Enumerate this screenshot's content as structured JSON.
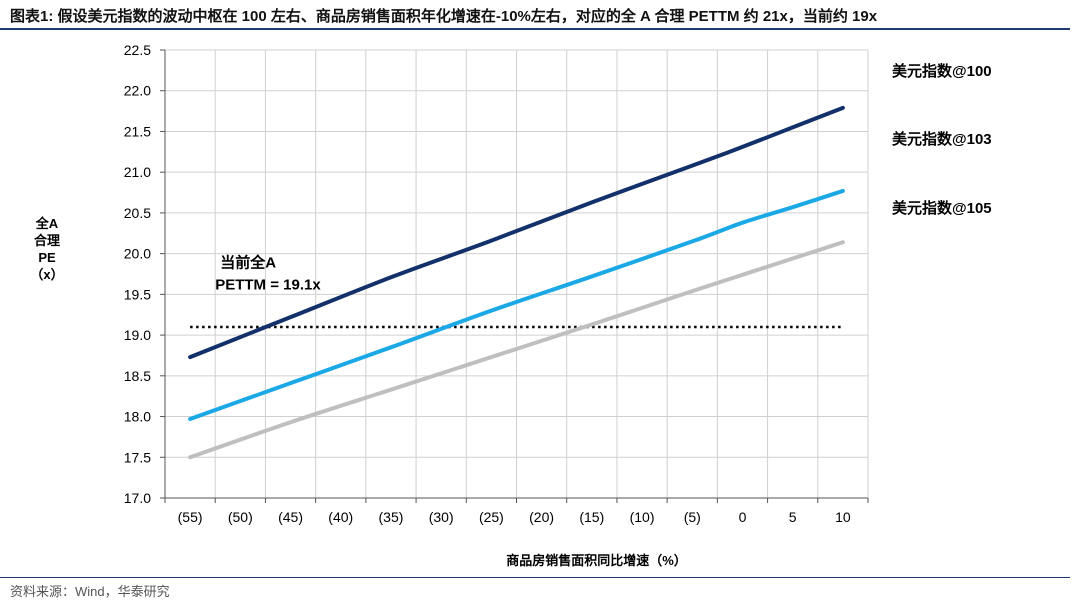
{
  "header": {
    "title": "图表1:  假设美元指数的波动中枢在 100 左右、商品房销售面积年化增速在-10%左右，对应的全 A 合理 PETTM 约 21x，当前约 19x"
  },
  "footer": {
    "source": "资料来源：Wind，华泰研究"
  },
  "chart_data": {
    "type": "line",
    "title": "",
    "xlabel": "商品房销售面积同比增速（%）",
    "ylabel_lines": [
      "全A",
      "合理",
      "PE",
      "（x）"
    ],
    "x": [
      -55,
      10
    ],
    "x_ticks": [
      -55,
      -50,
      -45,
      -40,
      -35,
      -30,
      -25,
      -20,
      -15,
      -10,
      -5,
      0,
      5,
      10
    ],
    "x_tick_labels": [
      "(55)",
      "(50)",
      "(45)",
      "(40)",
      "(35)",
      "(30)",
      "(25)",
      "(20)",
      "(15)",
      "(10)",
      "(5)",
      "0",
      "5",
      "10"
    ],
    "xlim": [
      -57.5,
      12.5
    ],
    "ylim": [
      17.0,
      22.5
    ],
    "y_ticks": [
      17.0,
      17.5,
      18.0,
      18.5,
      19.0,
      19.5,
      20.0,
      20.5,
      21.0,
      21.5,
      22.0,
      22.5
    ],
    "y_tick_labels": [
      "17.0",
      "17.5",
      "18.0",
      "18.5",
      "19.0",
      "19.5",
      "20.0",
      "20.5",
      "21.0",
      "21.5",
      "22.0",
      "22.5"
    ],
    "grid": true,
    "legend": "right",
    "series": [
      {
        "name": "美元指数@100",
        "color": "#12316b",
        "x": [
          -55,
          -45,
          -35,
          -25,
          -15,
          -5,
          0,
          5,
          10
        ],
        "values": [
          18.73,
          19.22,
          19.71,
          20.16,
          20.63,
          21.08,
          21.31,
          21.55,
          21.79
        ]
      },
      {
        "name": "美元指数@103",
        "color": "#1aa9e6",
        "x": [
          -55,
          -45,
          -35,
          -25,
          -15,
          -5,
          0,
          5,
          10
        ],
        "values": [
          17.97,
          18.41,
          18.85,
          19.3,
          19.72,
          20.15,
          20.38,
          20.57,
          20.77
        ]
      },
      {
        "name": "美元指数@105",
        "color": "#bfbfbf",
        "x": [
          -55,
          -45,
          -35,
          -25,
          -15,
          -5,
          0,
          5,
          10
        ],
        "values": [
          17.5,
          17.93,
          18.33,
          18.73,
          19.13,
          19.54,
          19.74,
          19.94,
          20.14
        ]
      }
    ],
    "reference_line": {
      "value": 19.1,
      "x": [
        -55,
        10
      ],
      "style": "dotted",
      "color": "#000000"
    },
    "annotation": {
      "lines": [
        "当前全A",
        "PETTM = 19.1x"
      ],
      "x": -52.5,
      "y": 19.95
    }
  }
}
